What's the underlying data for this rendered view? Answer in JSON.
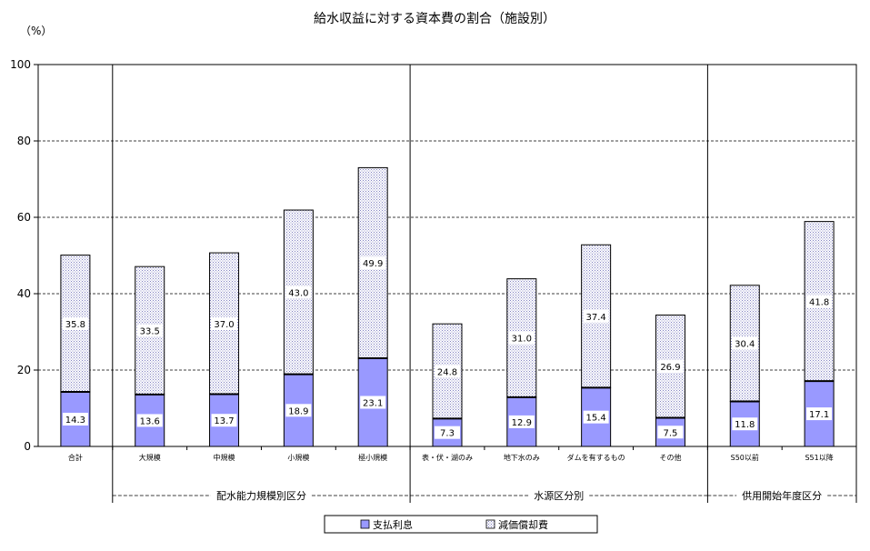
{
  "chart_data": {
    "type": "bar",
    "stacked": true,
    "title": "給水収益に対する資本費の割合（施設別）",
    "ylabel": "（%）",
    "ylim": [
      0,
      100
    ],
    "yticks": [
      0,
      20,
      40,
      60,
      80,
      100
    ],
    "grid": true,
    "legend_position": "bottom",
    "categories": [
      "合計",
      "大規模",
      "中規模",
      "小規模",
      "極小規模",
      "表・伏・湖のみ",
      "地下水のみ",
      "ダムを有するもの",
      "その他",
      "S50以前",
      "S51以降"
    ],
    "groups": [
      {
        "label": "配水能力規模別区分",
        "categories": [
          "大規模",
          "中規模",
          "小規模",
          "極小規模"
        ]
      },
      {
        "label": "水源区分別",
        "categories": [
          "表・伏・湖のみ",
          "地下水のみ",
          "ダムを有するもの",
          "その他"
        ]
      },
      {
        "label": "供用開始年度区分",
        "categories": [
          "S50以前",
          "S51以降"
        ]
      }
    ],
    "series": [
      {
        "name": "支払利息",
        "color": "#9999ff",
        "pattern": "solid",
        "values": [
          14.3,
          13.6,
          13.7,
          18.9,
          23.1,
          7.3,
          12.9,
          15.4,
          7.5,
          11.8,
          17.1
        ]
      },
      {
        "name": "減価償却費",
        "color": "#9999ff",
        "pattern": "dotted",
        "values": [
          35.8,
          33.5,
          37.0,
          43.0,
          49.9,
          24.8,
          31.0,
          37.4,
          26.9,
          30.4,
          41.8
        ]
      }
    ]
  }
}
